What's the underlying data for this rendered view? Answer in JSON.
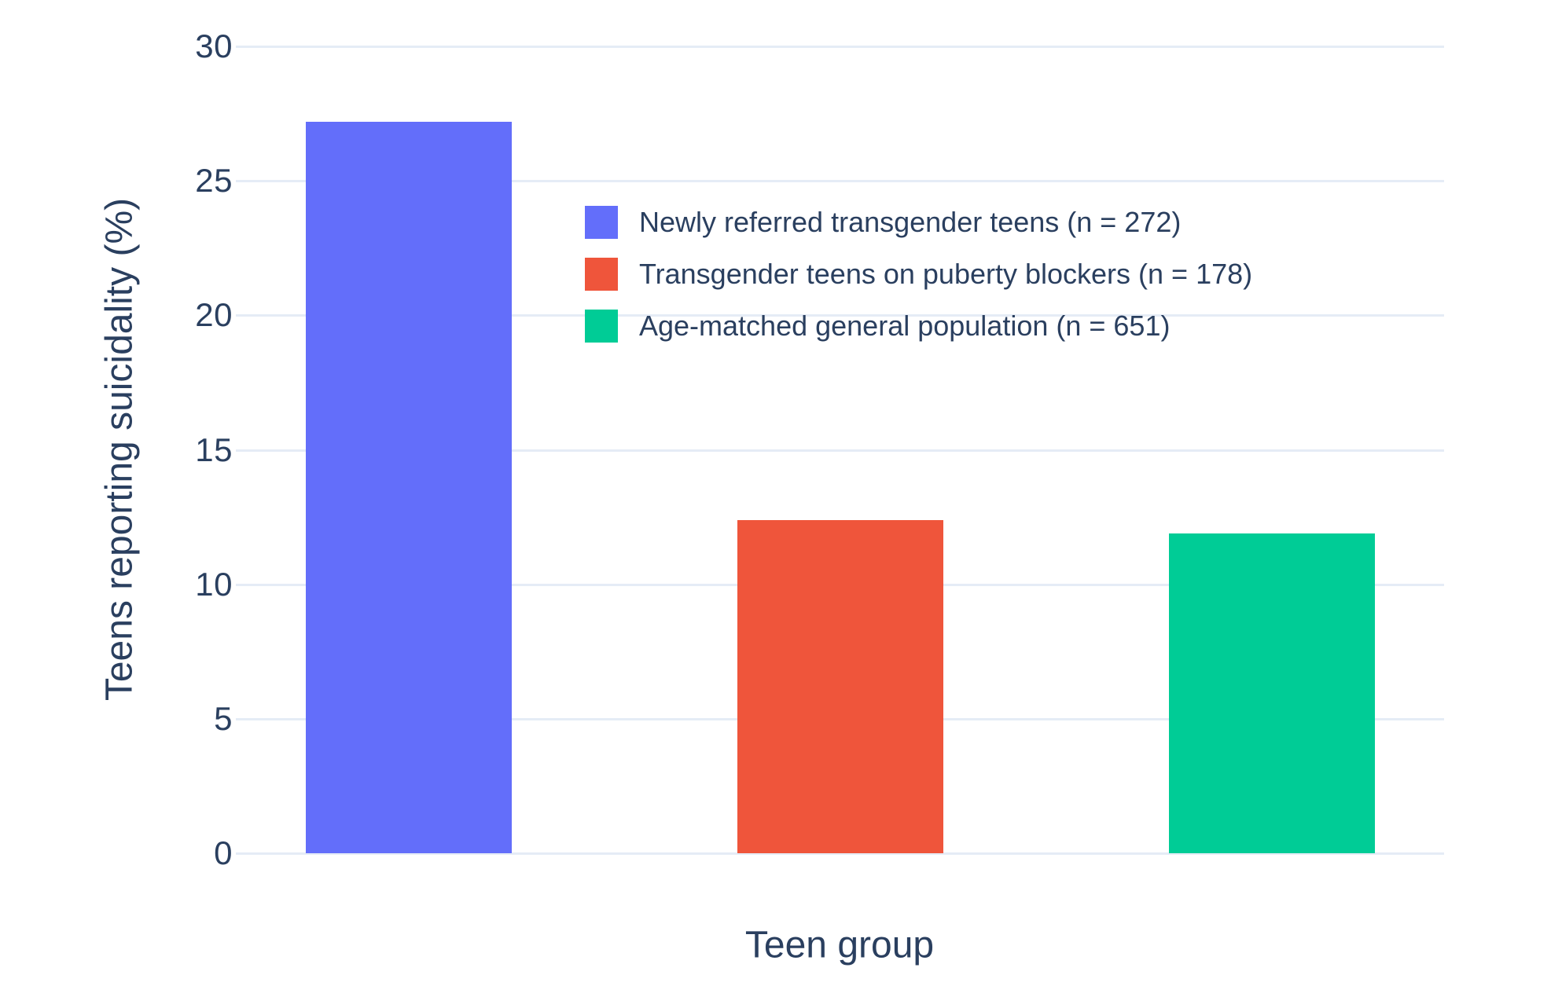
{
  "chart_data": {
    "type": "bar",
    "title": "",
    "xlabel": "Teen group",
    "ylabel": "Teens reporting suicidality (%)",
    "categories": [
      "Newly referred transgender teens (n = 272)",
      "Transgender teens on puberty blockers (n = 178)",
      "Age-matched general population (n = 651)"
    ],
    "series": [
      {
        "name": "Newly referred transgender teens (n = 272)",
        "value": 27.2,
        "color": "#636EFA"
      },
      {
        "name": "Transgender teens on puberty blockers (n = 178)",
        "value": 12.4,
        "color": "#EF553B"
      },
      {
        "name": "Age-matched general population (n = 651)",
        "value": 11.9,
        "color": "#00CC96"
      }
    ],
    "ylim": [
      0,
      30
    ],
    "yticks": [
      0,
      5,
      10,
      15,
      20,
      25,
      30
    ],
    "ytick_labels": [
      "0",
      "5",
      "10",
      "15",
      "20",
      "25",
      "30"
    ],
    "grid": true,
    "legend_position": "inside-top-left",
    "colors": {
      "grid": "#E5ECF6",
      "text": "#2a3f5f",
      "background": "#FFFFFF"
    }
  }
}
